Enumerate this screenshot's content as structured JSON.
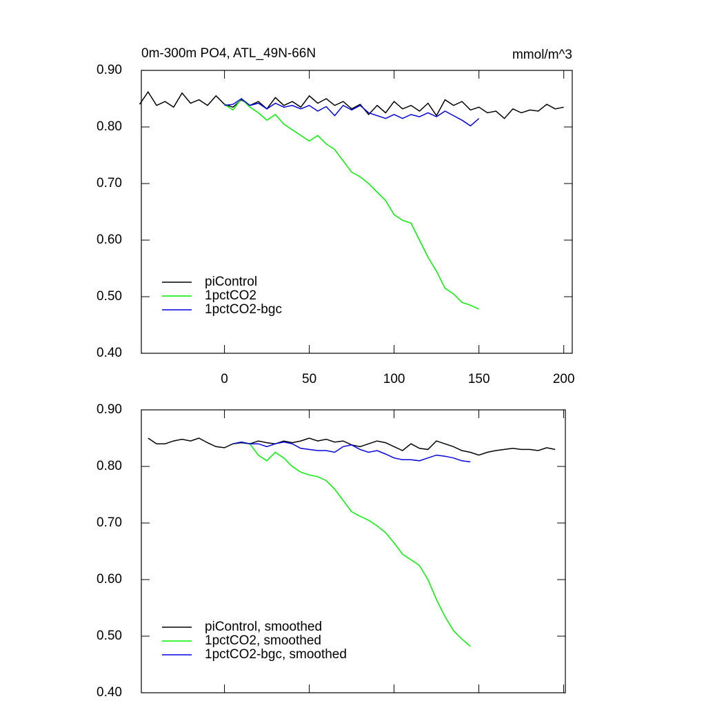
{
  "chart_data": [
    {
      "type": "line",
      "title": "0m-300m PO4, ATL_49N-66N",
      "units": "mmol/m^3",
      "x": [
        -50,
        -45,
        -40,
        -35,
        -30,
        -25,
        -20,
        -15,
        -10,
        -5,
        0,
        5,
        10,
        15,
        20,
        25,
        30,
        35,
        40,
        45,
        50,
        55,
        60,
        65,
        70,
        75,
        80,
        85,
        90,
        95,
        100,
        105,
        110,
        115,
        120,
        125,
        130,
        135,
        140,
        145,
        150,
        155,
        160,
        165,
        170,
        175,
        180,
        185,
        190,
        195,
        200
      ],
      "xlim": [
        -49,
        205
      ],
      "xticks": [
        0,
        50,
        100,
        150,
        200
      ],
      "ylim": [
        0.4,
        0.9
      ],
      "yticks": [
        {
          "value": 0.4,
          "label": "0.40"
        },
        {
          "value": 0.5,
          "label": "0.50"
        },
        {
          "value": 0.6,
          "label": "0.60"
        },
        {
          "value": 0.7,
          "label": "0.70"
        },
        {
          "value": 0.8,
          "label": "0.80"
        },
        {
          "value": 0.9,
          "label": "0.90"
        }
      ],
      "legend": "lower left",
      "series": [
        {
          "name": "piControl",
          "color": "#000000",
          "values": [
            0.84,
            0.862,
            0.838,
            0.845,
            0.835,
            0.86,
            0.842,
            0.848,
            0.838,
            0.855,
            0.84,
            0.835,
            0.848,
            0.838,
            0.845,
            0.832,
            0.852,
            0.838,
            0.845,
            0.835,
            0.855,
            0.842,
            0.85,
            0.838,
            0.845,
            0.832,
            0.84,
            0.822,
            0.838,
            0.825,
            0.845,
            0.832,
            0.838,
            0.828,
            0.842,
            0.82,
            0.848,
            0.838,
            0.845,
            0.83,
            0.835,
            0.825,
            0.828,
            0.815,
            0.832,
            0.825,
            0.83,
            0.828,
            0.84,
            0.832,
            0.835
          ]
        },
        {
          "name": "1pctCO2",
          "color": "#00ee00",
          "values": [
            null,
            null,
            null,
            null,
            null,
            null,
            null,
            null,
            null,
            null,
            0.84,
            0.83,
            0.85,
            0.835,
            0.825,
            0.812,
            0.822,
            0.805,
            0.795,
            0.785,
            0.775,
            0.785,
            0.77,
            0.76,
            0.74,
            0.72,
            0.712,
            0.7,
            0.685,
            0.67,
            0.645,
            0.635,
            0.63,
            0.6,
            0.57,
            0.545,
            0.515,
            0.505,
            0.49,
            0.485,
            0.478,
            null,
            null,
            null,
            null,
            null,
            null,
            null,
            null,
            null,
            null
          ]
        },
        {
          "name": "1pctCO2-bgc",
          "color": "#0000dd",
          "values": [
            null,
            null,
            null,
            null,
            null,
            null,
            null,
            null,
            null,
            null,
            0.838,
            0.84,
            0.85,
            0.838,
            0.842,
            0.832,
            0.842,
            0.835,
            0.838,
            0.832,
            0.838,
            0.828,
            0.836,
            0.82,
            0.838,
            0.83,
            0.838,
            0.825,
            0.82,
            0.815,
            0.822,
            0.815,
            0.822,
            0.818,
            0.825,
            0.818,
            0.828,
            0.82,
            0.812,
            0.802,
            0.815,
            null,
            null,
            null,
            null,
            null,
            null,
            null,
            null,
            null,
            null
          ]
        }
      ]
    },
    {
      "type": "line",
      "x": [
        -50,
        -45,
        -40,
        -35,
        -30,
        -25,
        -20,
        -15,
        -10,
        -5,
        0,
        5,
        10,
        15,
        20,
        25,
        30,
        35,
        40,
        45,
        50,
        55,
        60,
        65,
        70,
        75,
        80,
        85,
        90,
        95,
        100,
        105,
        110,
        115,
        120,
        125,
        130,
        135,
        140,
        145,
        150,
        155,
        160,
        165,
        170,
        175,
        180,
        185,
        190,
        195,
        200
      ],
      "xlim": [
        -49,
        201
      ],
      "ylim": [
        0.4,
        0.9
      ],
      "yticks": [
        {
          "value": 0.4,
          "label": "0.40"
        },
        {
          "value": 0.5,
          "label": "0.50"
        },
        {
          "value": 0.6,
          "label": "0.60"
        },
        {
          "value": 0.7,
          "label": "0.70"
        },
        {
          "value": 0.8,
          "label": "0.80"
        },
        {
          "value": 0.9,
          "label": "0.90"
        }
      ],
      "legend": "lower left",
      "series": [
        {
          "name": "piControl, smoothed",
          "color": "#000000",
          "values": [
            null,
            0.85,
            0.84,
            0.84,
            0.845,
            0.848,
            0.845,
            0.85,
            0.842,
            0.835,
            0.833,
            0.84,
            0.842,
            0.84,
            0.845,
            0.842,
            0.84,
            0.845,
            0.842,
            0.845,
            0.85,
            0.845,
            0.848,
            0.843,
            0.845,
            0.838,
            0.835,
            0.84,
            0.845,
            0.842,
            0.835,
            0.828,
            0.84,
            0.832,
            0.83,
            0.845,
            0.84,
            0.835,
            0.828,
            0.825,
            0.82,
            0.825,
            0.828,
            0.83,
            0.832,
            0.83,
            0.83,
            0.828,
            0.833,
            0.83,
            null
          ]
        },
        {
          "name": "1pctCO2, smoothed",
          "color": "#00ee00",
          "values": [
            null,
            null,
            null,
            null,
            null,
            null,
            null,
            null,
            null,
            null,
            null,
            0.84,
            0.843,
            0.84,
            0.82,
            0.81,
            0.825,
            0.815,
            0.8,
            0.79,
            0.785,
            0.782,
            0.775,
            0.76,
            0.74,
            0.72,
            0.712,
            0.705,
            0.695,
            0.683,
            0.665,
            0.645,
            0.635,
            0.625,
            0.6,
            0.565,
            0.535,
            0.51,
            0.495,
            0.482,
            null,
            null,
            null,
            null,
            null,
            null,
            null,
            null,
            null,
            null,
            null
          ]
        },
        {
          "name": "1pctCO2-bgc, smoothed",
          "color": "#0000dd",
          "values": [
            null,
            null,
            null,
            null,
            null,
            null,
            null,
            null,
            null,
            null,
            null,
            0.84,
            0.843,
            0.84,
            0.84,
            0.835,
            0.84,
            0.843,
            0.84,
            0.832,
            0.83,
            0.828,
            0.828,
            0.825,
            0.835,
            0.838,
            0.83,
            0.825,
            0.828,
            0.822,
            0.815,
            0.812,
            0.812,
            0.81,
            0.815,
            0.82,
            0.818,
            0.815,
            0.81,
            0.808,
            null,
            null,
            null,
            null,
            null,
            null,
            null,
            null,
            null,
            null,
            null
          ]
        }
      ]
    }
  ]
}
